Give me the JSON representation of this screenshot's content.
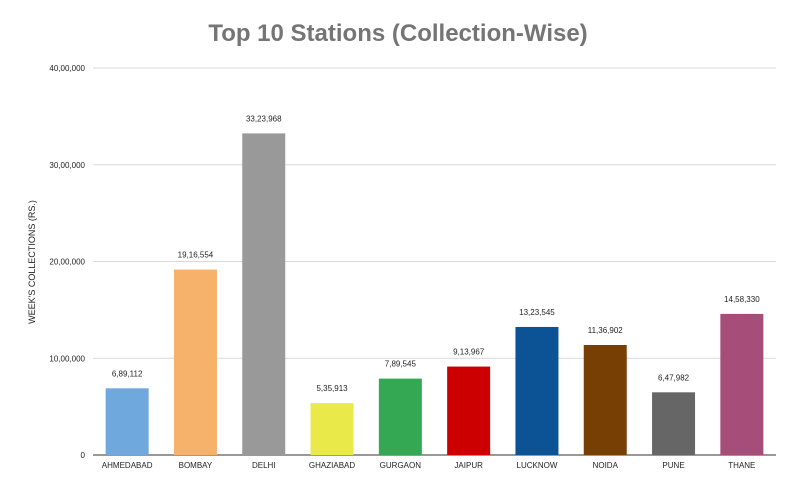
{
  "chart_data": {
    "type": "bar",
    "title": "Top 10 Stations (Collection-Wise)",
    "xlabel": "",
    "ylabel": "WEEK'S COLLECTIONS (RS.)",
    "ylim": [
      0,
      4000000
    ],
    "yticks": [
      0,
      1000000,
      2000000,
      3000000,
      4000000
    ],
    "ytick_labels": [
      "0",
      "10,00,000",
      "20,00,000",
      "30,00,000",
      "40,00,000"
    ],
    "grid": true,
    "legend": "none",
    "categories": [
      "AHMEDABAD",
      "BOMBAY",
      "DELHI",
      "GHAZIABAD",
      "GURGAON",
      "JAIPUR",
      "LUCKNOW",
      "NOIDA",
      "PUNE",
      "THANE"
    ],
    "values": [
      689112,
      1916554,
      3323968,
      535913,
      789545,
      913967,
      1323545,
      1136902,
      647982,
      1458330
    ],
    "value_labels": [
      "6,89,112",
      "19,16,554",
      "33,23,968",
      "5,35,913",
      "7,89,545",
      "9,13,967",
      "13,23,545",
      "11,36,902",
      "6,47,982",
      "14,58,330"
    ],
    "colors": [
      "#6fa8dc",
      "#f6b26b",
      "#999999",
      "#e9e949",
      "#34a853",
      "#cc0000",
      "#0b5394",
      "#783f04",
      "#666666",
      "#a64d79"
    ]
  }
}
